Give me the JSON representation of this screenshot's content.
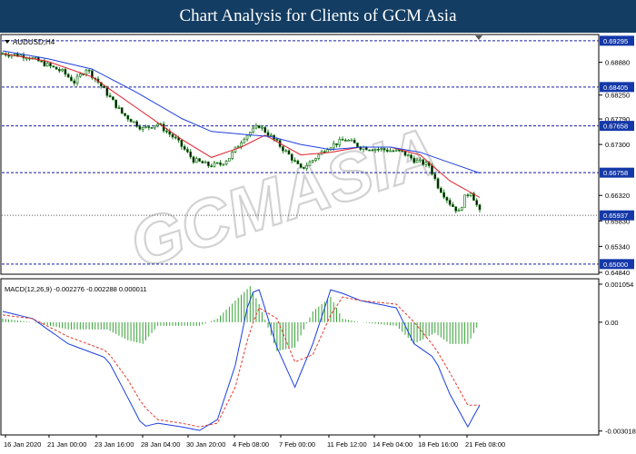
{
  "header": {
    "title": "Chart Analysis for Clients of GCM Asia"
  },
  "watermark": {
    "text": "GCMASIA",
    "subtext": "",
    "color": "#b5b5b5"
  },
  "colors": {
    "background": "#ffffff",
    "header": "#143d63",
    "candle": "#1d7a1d",
    "ma_fast": "#e0202a",
    "ma_slow": "#2040e0",
    "level_line": "#1a1aa6",
    "label_fill": "#1438a8",
    "macd_hist": "#36a336",
    "macd_line": "#1a3fe0",
    "signal_line": "#e23b2f",
    "axis_text": "#000000"
  },
  "chart_data": [
    {
      "type": "candlestick",
      "symbol_label": "AUDUSD,H4",
      "title": "",
      "ylim": [
        0.6484,
        0.6938
      ],
      "y_ticks": [
        "0.68880",
        "0.68250",
        "0.67790",
        "0.67300",
        "0.66320",
        "0.65830",
        "0.65340",
        "0.64840"
      ],
      "levels": [
        "0.69295",
        "0.68405",
        "0.67658",
        "0.66758",
        "0.65937",
        "0.65000"
      ],
      "current_price": "0.65937",
      "x_ticks": [
        "16 Jan 2020",
        "21 Jan 00:00",
        "23 Jan 16:00",
        "28 Jan 04:00",
        "30 Jan 20:00",
        "4 Feb 08:00",
        "7 Feb 00:00",
        "11 Feb 12:00",
        "14 Feb 04:00",
        "18 Feb 16:00",
        "21 Feb 08:00"
      ],
      "close_path": [
        [
          0,
          0.6905
        ],
        [
          8,
          0.69
        ],
        [
          20,
          0.687
        ],
        [
          24,
          0.685
        ],
        [
          28,
          0.6876
        ],
        [
          32,
          0.685
        ],
        [
          40,
          0.679
        ],
        [
          47,
          0.676
        ],
        [
          52,
          0.677
        ],
        [
          58,
          0.674
        ],
        [
          64,
          0.67
        ],
        [
          69,
          0.669
        ],
        [
          73,
          0.6692
        ],
        [
          76,
          0.6705
        ],
        [
          81,
          0.6745
        ],
        [
          86,
          0.6766
        ],
        [
          90,
          0.6745
        ],
        [
          96,
          0.671
        ],
        [
          100,
          0.6682
        ],
        [
          104,
          0.67
        ],
        [
          109,
          0.6725
        ],
        [
          115,
          0.674
        ],
        [
          120,
          0.6725
        ],
        [
          128,
          0.672
        ],
        [
          134,
          0.6715
        ],
        [
          138,
          0.67
        ],
        [
          143,
          0.669
        ],
        [
          146,
          0.665
        ],
        [
          150,
          0.6617
        ],
        [
          153,
          0.66
        ],
        [
          155,
          0.6628
        ],
        [
          157,
          0.664
        ],
        [
          160,
          0.66
        ]
      ],
      "series": [
        {
          "name": "",
          "kind": "ma_fast",
          "values": [
            [
              0,
              0.6905
            ],
            [
              15,
              0.689
            ],
            [
              30,
              0.686
            ],
            [
              45,
              0.68
            ],
            [
              60,
              0.674
            ],
            [
              70,
              0.6705
            ],
            [
              80,
              0.6725
            ],
            [
              88,
              0.6748
            ],
            [
              100,
              0.671
            ],
            [
              110,
              0.6715
            ],
            [
              120,
              0.6725
            ],
            [
              130,
              0.6725
            ],
            [
              140,
              0.671
            ],
            [
              150,
              0.666
            ],
            [
              160,
              0.6628
            ]
          ]
        },
        {
          "name": "",
          "kind": "ma_slow",
          "values": [
            [
              0,
              0.691
            ],
            [
              15,
              0.6895
            ],
            [
              30,
              0.6875
            ],
            [
              45,
              0.683
            ],
            [
              60,
              0.678
            ],
            [
              70,
              0.6755
            ],
            [
              80,
              0.675
            ],
            [
              90,
              0.6745
            ],
            [
              100,
              0.673
            ],
            [
              110,
              0.672
            ],
            [
              120,
              0.6725
            ],
            [
              130,
              0.6725
            ],
            [
              140,
              0.6715
            ],
            [
              150,
              0.6695
            ],
            [
              160,
              0.6675
            ]
          ]
        }
      ]
    },
    {
      "type": "macd",
      "label": "MACD(12,26,9) -0.002276 -0.002288 0.000011",
      "ylim": [
        -0.0031,
        0.00118
      ],
      "y_ticks": [
        "0.001054",
        "0.00",
        "-0.003018"
      ],
      "series": [
        {
          "name": "",
          "kind": "macd_line",
          "values": [
            [
              0,
              0.0003
            ],
            [
              10,
              0.0001
            ],
            [
              22,
              -0.0006
            ],
            [
              35,
              -0.001
            ],
            [
              42,
              -0.0021
            ],
            [
              47,
              -0.0029
            ],
            [
              52,
              -0.0028
            ],
            [
              60,
              -0.0029
            ],
            [
              66,
              -0.003
            ],
            [
              72,
              -0.0027
            ],
            [
              78,
              -0.0012
            ],
            [
              83,
              0.0008
            ],
            [
              86,
              0.0009
            ],
            [
              92,
              -0.0007
            ],
            [
              98,
              -0.0018
            ],
            [
              104,
              -0.0006
            ],
            [
              110,
              0.0009
            ],
            [
              114,
              0.0008
            ],
            [
              120,
              0.0006
            ],
            [
              132,
              0.0004
            ],
            [
              138,
              -0.0006
            ],
            [
              145,
              -0.001
            ],
            [
              150,
              -0.002
            ],
            [
              156,
              -0.0029
            ],
            [
              160,
              -0.0023
            ]
          ]
        },
        {
          "name": "",
          "kind": "signal_line",
          "values": [
            [
              0,
              0.0002
            ],
            [
              10,
              0.0001
            ],
            [
              22,
              -0.0004
            ],
            [
              35,
              -0.0008
            ],
            [
              42,
              -0.0016
            ],
            [
              47,
              -0.0023
            ],
            [
              52,
              -0.0027
            ],
            [
              60,
              -0.0028
            ],
            [
              66,
              -0.0029
            ],
            [
              72,
              -0.0028
            ],
            [
              78,
              -0.0018
            ],
            [
              83,
              -0.0002
            ],
            [
              86,
              0.0004
            ],
            [
              92,
              0.0001
            ],
            [
              98,
              -0.0011
            ],
            [
              104,
              -0.0009
            ],
            [
              110,
              0.0002
            ],
            [
              114,
              0.0007
            ],
            [
              120,
              0.0006
            ],
            [
              132,
              0.0005
            ],
            [
              138,
              0.0
            ],
            [
              145,
              -0.0007
            ],
            [
              150,
              -0.0014
            ],
            [
              156,
              -0.0023
            ],
            [
              160,
              -0.0023
            ]
          ]
        },
        {
          "name": "",
          "kind": "histogram",
          "values": [
            [
              0,
              0.0001
            ],
            [
              10,
              0.0
            ],
            [
              22,
              -0.0002
            ],
            [
              35,
              -0.0002
            ],
            [
              42,
              -0.0005
            ],
            [
              47,
              -0.0006
            ],
            [
              52,
              -0.0001
            ],
            [
              60,
              -0.0001
            ],
            [
              66,
              -0.0001
            ],
            [
              72,
              0.0001
            ],
            [
              78,
              0.0006
            ],
            [
              83,
              0.001
            ],
            [
              86,
              0.0005
            ],
            [
              92,
              -0.0008
            ],
            [
              98,
              -0.0007
            ],
            [
              104,
              0.0003
            ],
            [
              110,
              0.0007
            ],
            [
              114,
              0.0001
            ],
            [
              120,
              0.0
            ],
            [
              132,
              -0.0001
            ],
            [
              138,
              -0.0006
            ],
            [
              145,
              -0.0003
            ],
            [
              150,
              -0.0006
            ],
            [
              156,
              -0.0006
            ],
            [
              160,
              0.0
            ]
          ]
        }
      ]
    }
  ]
}
